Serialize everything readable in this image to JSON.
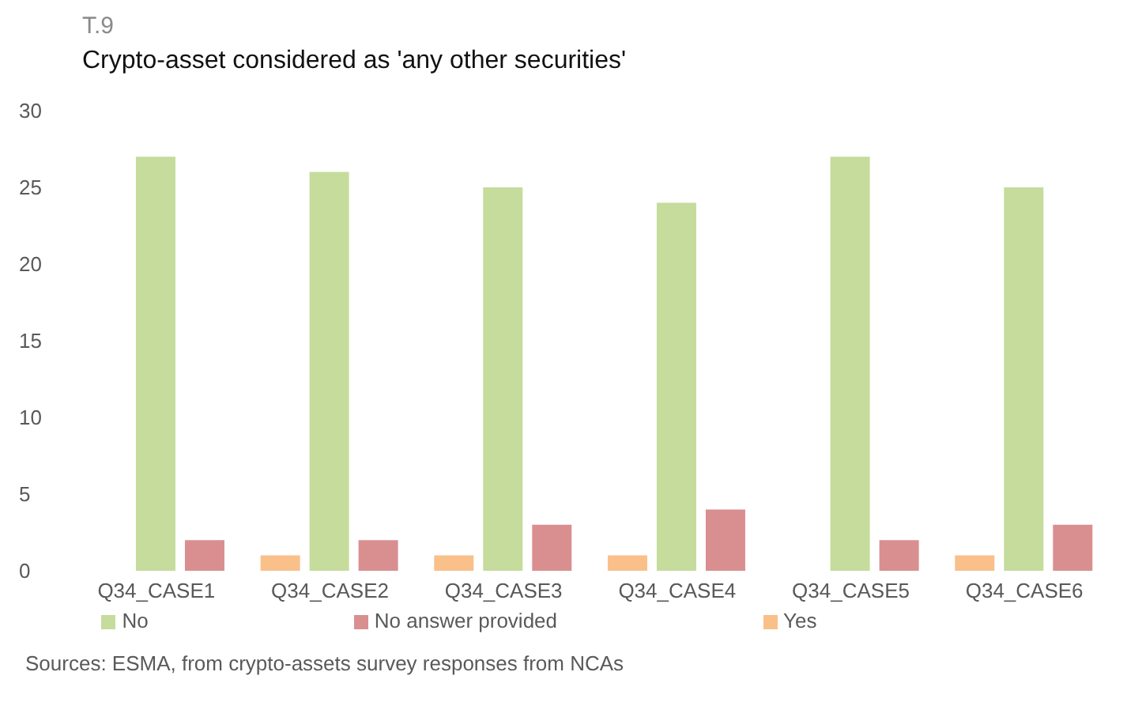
{
  "chart_data": {
    "type": "bar",
    "subtitle": "T.9",
    "title": "Crypto-asset considered as 'any other securities'",
    "categories": [
      "Q34_CASE1",
      "Q34_CASE2",
      "Q34_CASE3",
      "Q34_CASE4",
      "Q34_CASE5",
      "Q34_CASE6"
    ],
    "series": [
      {
        "name": "Yes",
        "color": "#f9c08a",
        "values": [
          0,
          1,
          1,
          1,
          0,
          1
        ]
      },
      {
        "name": "No",
        "color": "#c5dc9c",
        "values": [
          27,
          26,
          25,
          24,
          27,
          25
        ]
      },
      {
        "name": "No answer provided",
        "color": "#d98f90",
        "values": [
          2,
          2,
          3,
          4,
          2,
          3
        ]
      }
    ],
    "ylim": [
      0,
      30
    ],
    "yticks": [
      0,
      5,
      10,
      15,
      20,
      25,
      30
    ],
    "grid": false,
    "legend": "bottom",
    "annotations": [
      "Sources: ESMA, from crypto-assets survey responses from NCAs"
    ]
  }
}
